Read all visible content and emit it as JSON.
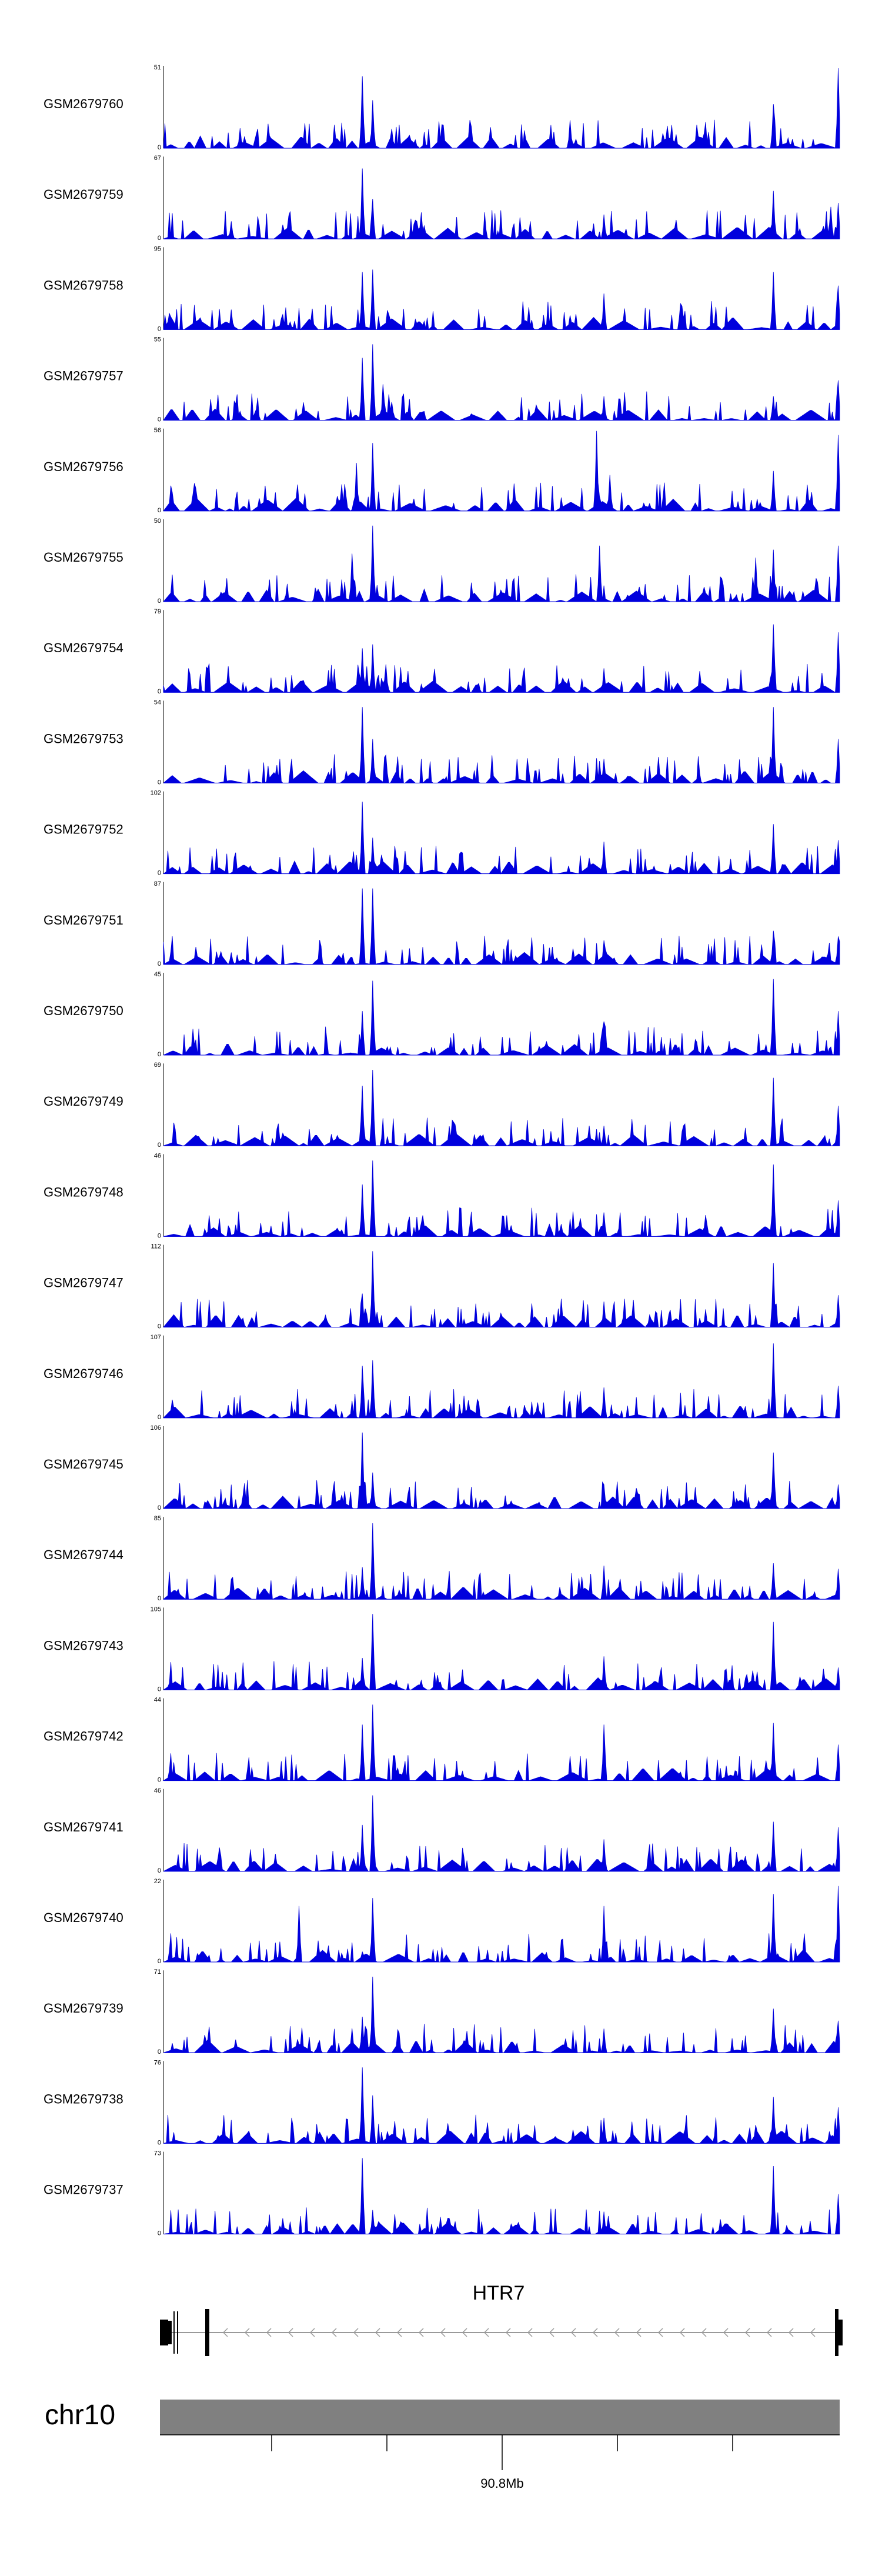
{
  "colors": {
    "signal": "#0000dd",
    "axis": "#000000",
    "chrom_bar": "#808080",
    "gene": "#000000",
    "intron": "#999999"
  },
  "chart_data": {
    "type": "area",
    "description": "Genome browser coverage tracks",
    "x_range_mb": [
      90.74,
      90.86
    ],
    "tracks": [
      {
        "name": "GSM2679760",
        "ymax": 51,
        "peaks": [
          [
            0.295,
            0.9
          ],
          [
            0.31,
            0.6
          ],
          [
            0.9,
            0.55
          ],
          [
            0.996,
            1.0
          ],
          [
            0.115,
            0.25
          ],
          [
            0.6,
            0.35
          ]
        ]
      },
      {
        "name": "GSM2679759",
        "ymax": 67,
        "peaks": [
          [
            0.295,
            0.88
          ],
          [
            0.31,
            0.5
          ],
          [
            0.65,
            0.3
          ],
          [
            0.9,
            0.6
          ],
          [
            0.985,
            0.4
          ],
          [
            0.996,
            0.45
          ],
          [
            0.1,
            0.22
          ]
        ]
      },
      {
        "name": "GSM2679758",
        "ymax": 95,
        "peaks": [
          [
            0.295,
            0.72
          ],
          [
            0.31,
            0.75
          ],
          [
            0.65,
            0.45
          ],
          [
            0.9,
            0.72
          ],
          [
            0.996,
            0.55
          ],
          [
            0.1,
            0.25
          ]
        ]
      },
      {
        "name": "GSM2679757",
        "ymax": 55,
        "peaks": [
          [
            0.295,
            0.78
          ],
          [
            0.31,
            0.95
          ],
          [
            0.325,
            0.45
          ],
          [
            0.65,
            0.3
          ],
          [
            0.9,
            0.3
          ],
          [
            0.996,
            0.5
          ]
        ]
      },
      {
        "name": "GSM2679756",
        "ymax": 56,
        "peaks": [
          [
            0.285,
            0.6
          ],
          [
            0.31,
            0.85
          ],
          [
            0.64,
            1.0
          ],
          [
            0.66,
            0.45
          ],
          [
            0.9,
            0.5
          ],
          [
            0.996,
            0.95
          ]
        ]
      },
      {
        "name": "GSM2679755",
        "ymax": 50,
        "peaks": [
          [
            0.28,
            0.6
          ],
          [
            0.31,
            0.95
          ],
          [
            0.645,
            0.7
          ],
          [
            0.875,
            0.55
          ],
          [
            0.9,
            0.65
          ],
          [
            0.996,
            0.7
          ]
        ]
      },
      {
        "name": "GSM2679754",
        "ymax": 79,
        "peaks": [
          [
            0.295,
            0.55
          ],
          [
            0.31,
            0.6
          ],
          [
            0.33,
            0.35
          ],
          [
            0.65,
            0.3
          ],
          [
            0.9,
            0.85
          ],
          [
            0.996,
            0.75
          ]
        ]
      },
      {
        "name": "GSM2679753",
        "ymax": 54,
        "peaks": [
          [
            0.295,
            0.95
          ],
          [
            0.31,
            0.55
          ],
          [
            0.33,
            0.35
          ],
          [
            0.65,
            0.3
          ],
          [
            0.9,
            0.95
          ],
          [
            0.996,
            0.55
          ]
        ]
      },
      {
        "name": "GSM2679752",
        "ymax": 102,
        "peaks": [
          [
            0.295,
            0.9
          ],
          [
            0.31,
            0.45
          ],
          [
            0.65,
            0.4
          ],
          [
            0.9,
            0.62
          ],
          [
            0.996,
            0.42
          ]
        ]
      },
      {
        "name": "GSM2679751",
        "ymax": 87,
        "peaks": [
          [
            0.295,
            0.95
          ],
          [
            0.31,
            0.95
          ],
          [
            0.65,
            0.3
          ],
          [
            0.9,
            0.42
          ],
          [
            0.996,
            0.35
          ],
          [
            0.1,
            0.15
          ]
        ]
      },
      {
        "name": "GSM2679750",
        "ymax": 45,
        "peaks": [
          [
            0.295,
            0.55
          ],
          [
            0.31,
            0.93
          ],
          [
            0.65,
            0.42
          ],
          [
            0.9,
            0.95
          ],
          [
            0.996,
            0.55
          ]
        ]
      },
      {
        "name": "GSM2679749",
        "ymax": 69,
        "peaks": [
          [
            0.295,
            0.75
          ],
          [
            0.31,
            0.95
          ],
          [
            0.65,
            0.25
          ],
          [
            0.9,
            0.85
          ],
          [
            0.996,
            0.5
          ]
        ]
      },
      {
        "name": "GSM2679748",
        "ymax": 46,
        "peaks": [
          [
            0.295,
            0.65
          ],
          [
            0.31,
            0.95
          ],
          [
            0.65,
            0.3
          ],
          [
            0.9,
            0.9
          ],
          [
            0.996,
            0.45
          ]
        ]
      },
      {
        "name": "GSM2679747",
        "ymax": 112,
        "peaks": [
          [
            0.295,
            0.42
          ],
          [
            0.31,
            0.95
          ],
          [
            0.65,
            0.32
          ],
          [
            0.9,
            0.8
          ],
          [
            0.996,
            0.4
          ]
        ]
      },
      {
        "name": "GSM2679746",
        "ymax": 107,
        "peaks": [
          [
            0.295,
            0.65
          ],
          [
            0.31,
            0.72
          ],
          [
            0.65,
            0.38
          ],
          [
            0.9,
            0.93
          ],
          [
            0.996,
            0.4
          ]
        ]
      },
      {
        "name": "GSM2679745",
        "ymax": 106,
        "peaks": [
          [
            0.295,
            0.95
          ],
          [
            0.31,
            0.45
          ],
          [
            0.65,
            0.3
          ],
          [
            0.9,
            0.7
          ],
          [
            0.996,
            0.3
          ]
        ]
      },
      {
        "name": "GSM2679744",
        "ymax": 85,
        "peaks": [
          [
            0.295,
            0.4
          ],
          [
            0.31,
            0.95
          ],
          [
            0.65,
            0.42
          ],
          [
            0.9,
            0.45
          ],
          [
            0.996,
            0.38
          ]
        ]
      },
      {
        "name": "GSM2679743",
        "ymax": 105,
        "peaks": [
          [
            0.295,
            0.4
          ],
          [
            0.31,
            0.95
          ],
          [
            0.65,
            0.42
          ],
          [
            0.9,
            0.85
          ],
          [
            0.996,
            0.28
          ]
        ]
      },
      {
        "name": "GSM2679742",
        "ymax": 44,
        "peaks": [
          [
            0.295,
            0.7
          ],
          [
            0.31,
            0.95
          ],
          [
            0.65,
            0.7
          ],
          [
            0.9,
            0.72
          ],
          [
            0.996,
            0.45
          ]
        ]
      },
      {
        "name": "GSM2679741",
        "ymax": 46,
        "peaks": [
          [
            0.295,
            0.58
          ],
          [
            0.31,
            0.95
          ],
          [
            0.65,
            0.4
          ],
          [
            0.9,
            0.62
          ],
          [
            0.996,
            0.55
          ]
        ]
      },
      {
        "name": "GSM2679740",
        "ymax": 22,
        "peaks": [
          [
            0.2,
            0.7
          ],
          [
            0.31,
            0.8
          ],
          [
            0.65,
            0.7
          ],
          [
            0.9,
            0.85
          ],
          [
            0.996,
            0.95
          ]
        ]
      },
      {
        "name": "GSM2679739",
        "ymax": 71,
        "peaks": [
          [
            0.295,
            0.45
          ],
          [
            0.31,
            0.95
          ],
          [
            0.65,
            0.3
          ],
          [
            0.9,
            0.55
          ],
          [
            0.996,
            0.4
          ]
        ]
      },
      {
        "name": "GSM2679738",
        "ymax": 76,
        "peaks": [
          [
            0.295,
            0.95
          ],
          [
            0.31,
            0.6
          ],
          [
            0.65,
            0.32
          ],
          [
            0.9,
            0.58
          ],
          [
            0.996,
            0.45
          ]
        ]
      },
      {
        "name": "GSM2679737",
        "ymax": 73,
        "peaks": [
          [
            0.295,
            0.95
          ],
          [
            0.31,
            0.3
          ],
          [
            0.65,
            0.28
          ],
          [
            0.9,
            0.85
          ],
          [
            0.996,
            0.5
          ]
        ]
      }
    ],
    "ymin_label": "0"
  },
  "gene": {
    "name": "HTR7",
    "strand": "-"
  },
  "chromosome": {
    "name": "chr10",
    "tick_label": "90.8Mb"
  }
}
